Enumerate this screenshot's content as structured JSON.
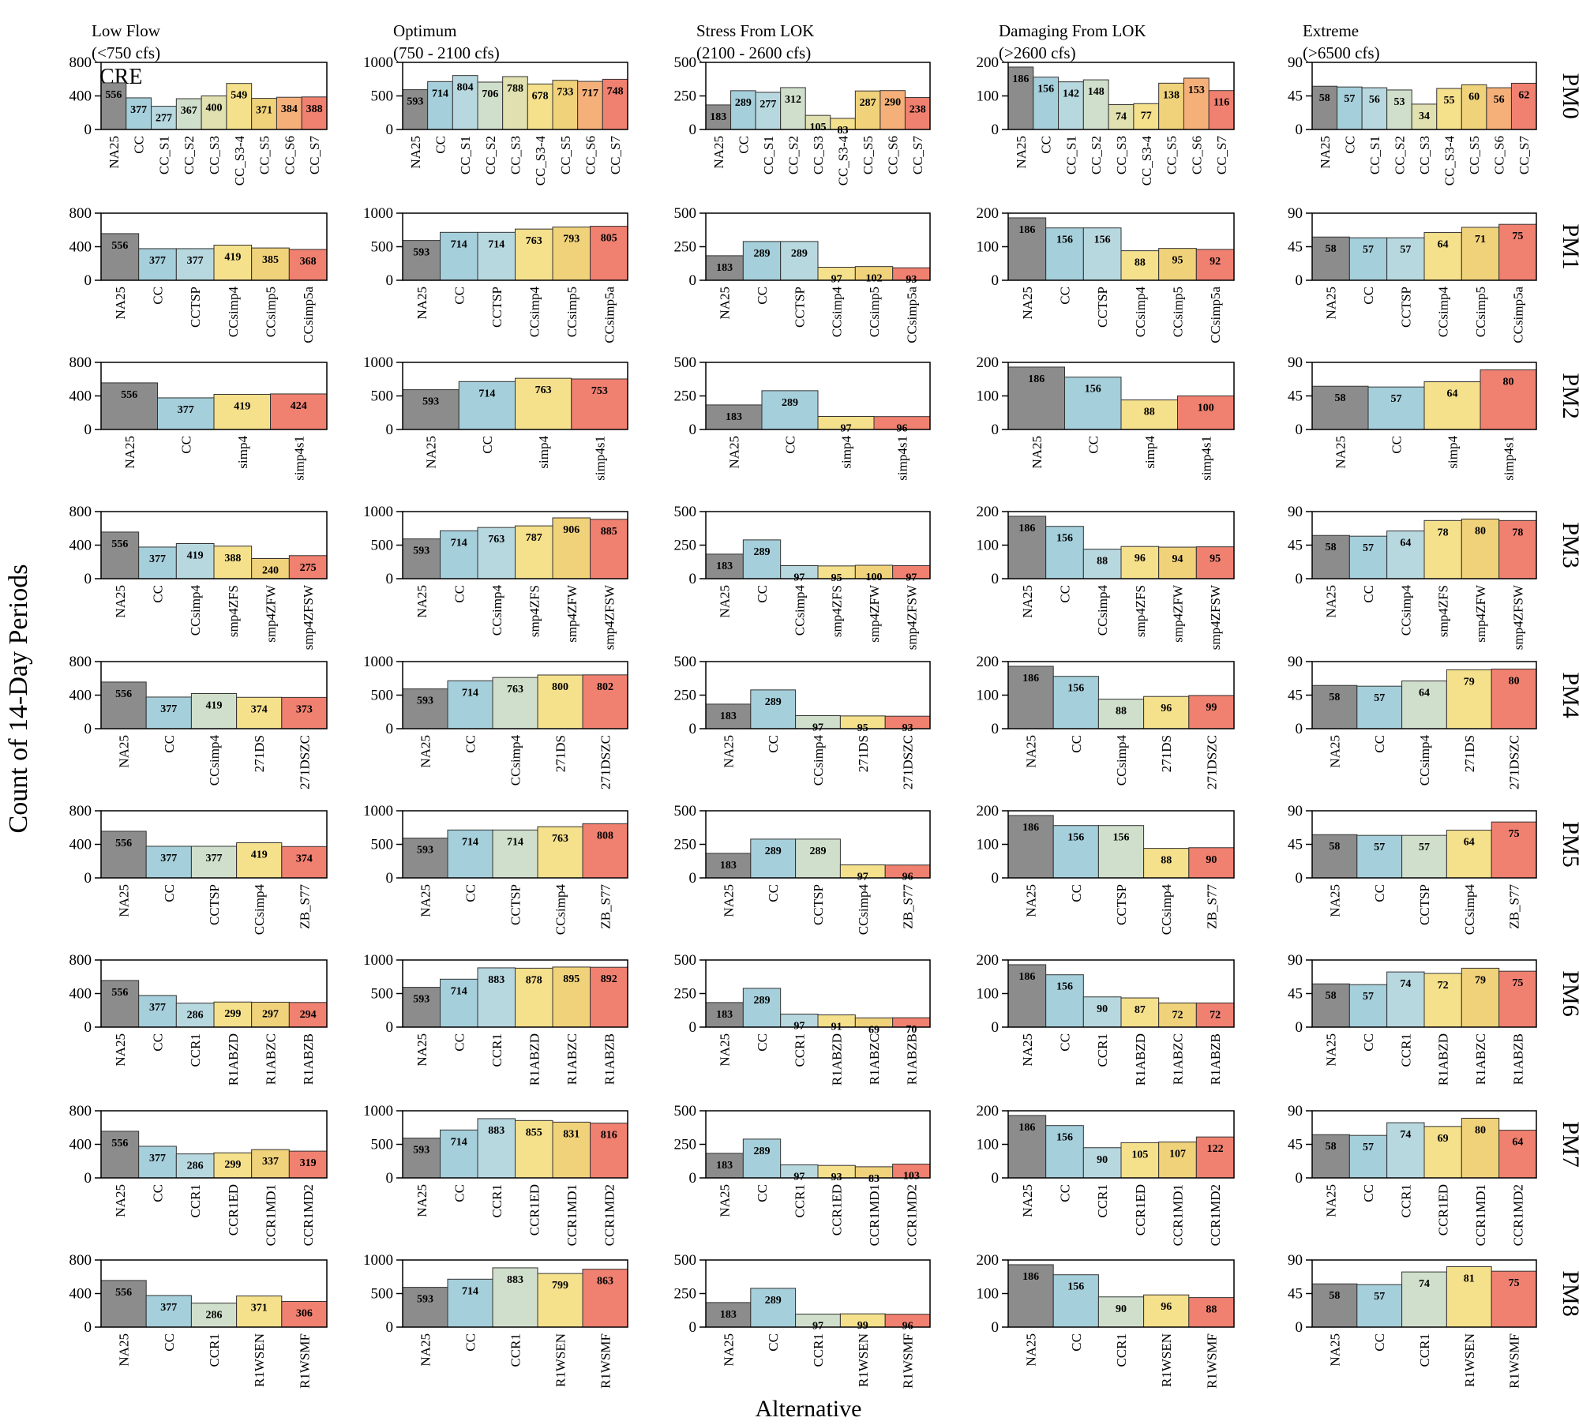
{
  "figure": {
    "ylabel": "Count of 14-Day Periods",
    "xlabel": "Alternative",
    "corner_label": "CRE",
    "columns": [
      {
        "title_line1": "Low Flow",
        "title_line2": "(<750 cfs)",
        "ylim": [
          0,
          800
        ],
        "yticks": [
          "0",
          "400",
          "800"
        ]
      },
      {
        "title_line1": "Optimum",
        "title_line2": "(750 - 2100 cfs)",
        "ylim": [
          0,
          1000
        ],
        "yticks": [
          "0",
          "500",
          "1000"
        ]
      },
      {
        "title_line1": "Stress From LOK",
        "title_line2": "(2100 - 2600 cfs)",
        "ylim": [
          0,
          500
        ],
        "yticks": [
          "0",
          "250",
          "500"
        ]
      },
      {
        "title_line1": "Damaging From LOK",
        "title_line2": "(>2600 cfs)",
        "ylim": [
          0,
          200
        ],
        "yticks": [
          "0",
          "100",
          "200"
        ]
      },
      {
        "title_line1": "Extreme",
        "title_line2": "(>6500 cfs)",
        "ylim": [
          0,
          90
        ],
        "yticks": [
          "0",
          "45",
          "90"
        ]
      }
    ],
    "colors": {
      "gray": "#8c8c8c",
      "blue": "#a5cfdb",
      "lightblue": "#b8d8e0",
      "sage": "#d0dfcb",
      "khaki": "#e0e0b0",
      "yellow": "#f5e08c",
      "gold": "#f0d27a",
      "orange": "#f5b07a",
      "red": "#f08070"
    }
  },
  "chart_data": [
    {
      "row": "PM0",
      "type": "bar",
      "categories": [
        "NA25",
        "CC",
        "CC_S1",
        "CC_S2",
        "CC_S3",
        "CC_S3-4",
        "CC_S5",
        "CC_S6",
        "CC_S7"
      ],
      "colors": [
        "gray",
        "blue",
        "lightblue",
        "sage",
        "khaki",
        "yellow",
        "gold",
        "orange",
        "red"
      ],
      "series": [
        {
          "column": "Low Flow",
          "values": [
            556,
            377,
            277,
            367,
            400,
            549,
            371,
            384,
            388
          ]
        },
        {
          "column": "Optimum",
          "values": [
            593,
            714,
            804,
            706,
            788,
            678,
            733,
            717,
            748
          ]
        },
        {
          "column": "Stress From LOK",
          "values": [
            183,
            289,
            277,
            312,
            105,
            83,
            287,
            290,
            238
          ]
        },
        {
          "column": "Damaging From LOK",
          "values": [
            186,
            156,
            142,
            148,
            74,
            77,
            138,
            153,
            116
          ]
        },
        {
          "column": "Extreme",
          "values": [
            58,
            57,
            56,
            53,
            34,
            55,
            60,
            56,
            62
          ]
        }
      ]
    },
    {
      "row": "PM1",
      "type": "bar",
      "categories": [
        "NA25",
        "CC",
        "CCTSP",
        "CCsimp4",
        "CCsimp5",
        "CCsimp5a"
      ],
      "colors": [
        "gray",
        "blue",
        "lightblue",
        "yellow",
        "gold",
        "red"
      ],
      "series": [
        {
          "column": "Low Flow",
          "values": [
            556,
            377,
            377,
            419,
            385,
            368
          ]
        },
        {
          "column": "Optimum",
          "values": [
            593,
            714,
            714,
            763,
            793,
            805
          ]
        },
        {
          "column": "Stress From LOK",
          "values": [
            183,
            289,
            289,
            97,
            102,
            93
          ]
        },
        {
          "column": "Damaging From LOK",
          "values": [
            186,
            156,
            156,
            88,
            95,
            92
          ]
        },
        {
          "column": "Extreme",
          "values": [
            58,
            57,
            57,
            64,
            71,
            75
          ]
        }
      ]
    },
    {
      "row": "PM2",
      "type": "bar",
      "categories": [
        "NA25",
        "CC",
        "simp4",
        "simp4s1"
      ],
      "colors": [
        "gray",
        "blue",
        "yellow",
        "red"
      ],
      "series": [
        {
          "column": "Low Flow",
          "values": [
            556,
            377,
            419,
            424
          ]
        },
        {
          "column": "Optimum",
          "values": [
            593,
            714,
            763,
            753
          ]
        },
        {
          "column": "Stress From LOK",
          "values": [
            183,
            289,
            97,
            96
          ]
        },
        {
          "column": "Damaging From LOK",
          "values": [
            186,
            156,
            88,
            100
          ]
        },
        {
          "column": "Extreme",
          "values": [
            58,
            57,
            64,
            80
          ]
        }
      ]
    },
    {
      "row": "PM3",
      "type": "bar",
      "categories": [
        "NA25",
        "CC",
        "CCsimp4",
        "smp4ZFS",
        "smp4ZFW",
        "smp4ZFSW"
      ],
      "colors": [
        "gray",
        "blue",
        "lightblue",
        "yellow",
        "gold",
        "red"
      ],
      "series": [
        {
          "column": "Low Flow",
          "values": [
            556,
            377,
            419,
            388,
            240,
            275
          ]
        },
        {
          "column": "Optimum",
          "values": [
            593,
            714,
            763,
            787,
            906,
            885
          ]
        },
        {
          "column": "Stress From LOK",
          "values": [
            183,
            289,
            97,
            95,
            100,
            97
          ]
        },
        {
          "column": "Damaging From LOK",
          "values": [
            186,
            156,
            88,
            96,
            94,
            95
          ]
        },
        {
          "column": "Extreme",
          "values": [
            58,
            57,
            64,
            78,
            80,
            78
          ]
        }
      ]
    },
    {
      "row": "PM4",
      "type": "bar",
      "categories": [
        "NA25",
        "CC",
        "CCsimp4",
        "271DS",
        "271DSZC"
      ],
      "colors": [
        "gray",
        "blue",
        "sage",
        "yellow",
        "red"
      ],
      "series": [
        {
          "column": "Low Flow",
          "values": [
            556,
            377,
            419,
            374,
            373
          ]
        },
        {
          "column": "Optimum",
          "values": [
            593,
            714,
            763,
            800,
            802
          ]
        },
        {
          "column": "Stress From LOK",
          "values": [
            183,
            289,
            97,
            95,
            93
          ]
        },
        {
          "column": "Damaging From LOK",
          "values": [
            186,
            156,
            88,
            96,
            99
          ]
        },
        {
          "column": "Extreme",
          "values": [
            58,
            57,
            64,
            79,
            80
          ]
        }
      ]
    },
    {
      "row": "PM5",
      "type": "bar",
      "categories": [
        "NA25",
        "CC",
        "CCTSP",
        "CCsimp4",
        "ZB_S77"
      ],
      "colors": [
        "gray",
        "blue",
        "sage",
        "yellow",
        "red"
      ],
      "series": [
        {
          "column": "Low Flow",
          "values": [
            556,
            377,
            377,
            419,
            374
          ]
        },
        {
          "column": "Optimum",
          "values": [
            593,
            714,
            714,
            763,
            808
          ]
        },
        {
          "column": "Stress From LOK",
          "values": [
            183,
            289,
            289,
            97,
            96
          ]
        },
        {
          "column": "Damaging From LOK",
          "values": [
            186,
            156,
            156,
            88,
            90
          ]
        },
        {
          "column": "Extreme",
          "values": [
            58,
            57,
            57,
            64,
            75
          ]
        }
      ]
    },
    {
      "row": "PM6",
      "type": "bar",
      "categories": [
        "NA25",
        "CC",
        "CCR1",
        "R1ABZD",
        "R1ABZC",
        "R1ABZB"
      ],
      "colors": [
        "gray",
        "blue",
        "lightblue",
        "yellow",
        "gold",
        "red"
      ],
      "series": [
        {
          "column": "Low Flow",
          "values": [
            556,
            377,
            286,
            299,
            297,
            294
          ]
        },
        {
          "column": "Optimum",
          "values": [
            593,
            714,
            883,
            878,
            895,
            892
          ]
        },
        {
          "column": "Stress From LOK",
          "values": [
            183,
            289,
            97,
            91,
            69,
            70
          ]
        },
        {
          "column": "Damaging From LOK",
          "values": [
            186,
            156,
            90,
            87,
            72,
            72
          ]
        },
        {
          "column": "Extreme",
          "values": [
            58,
            57,
            74,
            72,
            79,
            75
          ]
        }
      ]
    },
    {
      "row": "PM7",
      "type": "bar",
      "categories": [
        "NA25",
        "CC",
        "CCR1",
        "CCR1ED",
        "CCR1MD1",
        "CCR1MD2"
      ],
      "colors": [
        "gray",
        "blue",
        "lightblue",
        "yellow",
        "gold",
        "red"
      ],
      "series": [
        {
          "column": "Low Flow",
          "values": [
            556,
            377,
            286,
            299,
            337,
            319
          ]
        },
        {
          "column": "Optimum",
          "values": [
            593,
            714,
            883,
            855,
            831,
            816
          ]
        },
        {
          "column": "Stress From LOK",
          "values": [
            183,
            289,
            97,
            93,
            83,
            103
          ]
        },
        {
          "column": "Damaging From LOK",
          "values": [
            186,
            156,
            90,
            105,
            107,
            122
          ]
        },
        {
          "column": "Extreme",
          "values": [
            58,
            57,
            74,
            69,
            80,
            64
          ]
        }
      ]
    },
    {
      "row": "PM8",
      "type": "bar",
      "categories": [
        "NA25",
        "CC",
        "CCR1",
        "R1WSEN",
        "R1WSMF"
      ],
      "colors": [
        "gray",
        "blue",
        "sage",
        "yellow",
        "red"
      ],
      "series": [
        {
          "column": "Low Flow",
          "values": [
            556,
            377,
            286,
            371,
            306
          ]
        },
        {
          "column": "Optimum",
          "values": [
            593,
            714,
            883,
            799,
            863
          ]
        },
        {
          "column": "Stress From LOK",
          "values": [
            183,
            289,
            97,
            99,
            96
          ]
        },
        {
          "column": "Damaging From LOK",
          "values": [
            186,
            156,
            90,
            96,
            88
          ]
        },
        {
          "column": "Extreme",
          "values": [
            58,
            57,
            74,
            81,
            75
          ]
        }
      ]
    }
  ]
}
